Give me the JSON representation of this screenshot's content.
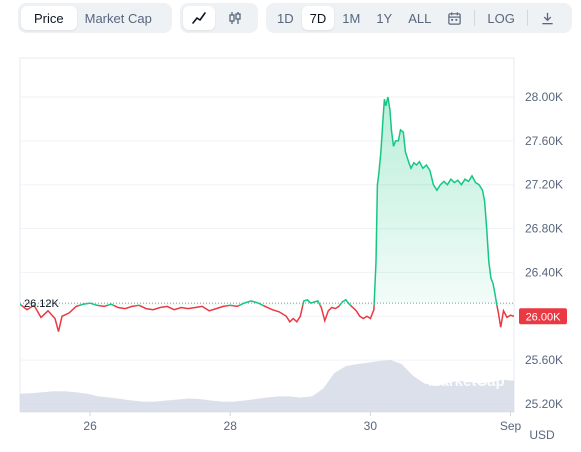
{
  "toolbar": {
    "type_tabs": [
      {
        "label": "Price",
        "active": true
      },
      {
        "label": "Market Cap",
        "active": false
      }
    ],
    "view_modes": [
      {
        "icon": "line-chart-icon",
        "active": true
      },
      {
        "icon": "candlestick-icon",
        "active": false
      }
    ],
    "ranges": [
      "1D",
      "7D",
      "1M",
      "1Y",
      "ALL"
    ],
    "active_range": "7D",
    "log_label": "LOG"
  },
  "chart_data": {
    "type": "area",
    "currency_label": "USD",
    "y_ticks": [
      "28.00K",
      "27.60K",
      "27.20K",
      "26.80K",
      "26.40K",
      "26.00K",
      "25.60K",
      "25.20K"
    ],
    "x_ticks": [
      "26",
      "28",
      "30",
      "Sep"
    ],
    "ylim": [
      25200,
      28000
    ],
    "baseline": {
      "value": 26120,
      "label": "26.12K"
    },
    "current_price": {
      "value": 26000,
      "label": "26.00K"
    },
    "watermark": "MarketCap",
    "colors": {
      "above": "#16c784",
      "below": "#ea3943",
      "volume": "#cfd6e4"
    },
    "series": [
      {
        "t": 0.0,
        "v": 26110
      },
      {
        "t": 0.1,
        "v": 26060
      },
      {
        "t": 0.2,
        "v": 26100
      },
      {
        "t": 0.3,
        "v": 25990
      },
      {
        "t": 0.4,
        "v": 26050
      },
      {
        "t": 0.5,
        "v": 25980
      },
      {
        "t": 0.55,
        "v": 25860
      },
      {
        "t": 0.6,
        "v": 26000
      },
      {
        "t": 0.7,
        "v": 26030
      },
      {
        "t": 0.8,
        "v": 26090
      },
      {
        "t": 0.9,
        "v": 26110
      },
      {
        "t": 1.0,
        "v": 26120
      },
      {
        "t": 1.1,
        "v": 26100
      },
      {
        "t": 1.2,
        "v": 26090
      },
      {
        "t": 1.3,
        "v": 26110
      },
      {
        "t": 1.4,
        "v": 26080
      },
      {
        "t": 1.5,
        "v": 26070
      },
      {
        "t": 1.6,
        "v": 26090
      },
      {
        "t": 1.7,
        "v": 26100
      },
      {
        "t": 1.8,
        "v": 26070
      },
      {
        "t": 1.9,
        "v": 26060
      },
      {
        "t": 2.0,
        "v": 26080
      },
      {
        "t": 2.1,
        "v": 26090
      },
      {
        "t": 2.2,
        "v": 26060
      },
      {
        "t": 2.3,
        "v": 26080
      },
      {
        "t": 2.4,
        "v": 26070
      },
      {
        "t": 2.5,
        "v": 26080
      },
      {
        "t": 2.6,
        "v": 26090
      },
      {
        "t": 2.7,
        "v": 26050
      },
      {
        "t": 2.8,
        "v": 26070
      },
      {
        "t": 2.9,
        "v": 26090
      },
      {
        "t": 3.0,
        "v": 26100
      },
      {
        "t": 3.1,
        "v": 26090
      },
      {
        "t": 3.2,
        "v": 26120
      },
      {
        "t": 3.3,
        "v": 26140
      },
      {
        "t": 3.35,
        "v": 26130
      },
      {
        "t": 3.4,
        "v": 26120
      },
      {
        "t": 3.5,
        "v": 26090
      },
      {
        "t": 3.6,
        "v": 26060
      },
      {
        "t": 3.7,
        "v": 26040
      },
      {
        "t": 3.8,
        "v": 26000
      },
      {
        "t": 3.85,
        "v": 25950
      },
      {
        "t": 3.9,
        "v": 25980
      },
      {
        "t": 3.95,
        "v": 25950
      },
      {
        "t": 4.0,
        "v": 26000
      },
      {
        "t": 4.05,
        "v": 26140
      },
      {
        "t": 4.1,
        "v": 26150
      },
      {
        "t": 4.15,
        "v": 26120
      },
      {
        "t": 4.2,
        "v": 26130
      },
      {
        "t": 4.25,
        "v": 26140
      },
      {
        "t": 4.3,
        "v": 26080
      },
      {
        "t": 4.35,
        "v": 25960
      },
      {
        "t": 4.4,
        "v": 26050
      },
      {
        "t": 4.45,
        "v": 26080
      },
      {
        "t": 4.5,
        "v": 26070
      },
      {
        "t": 4.55,
        "v": 26090
      },
      {
        "t": 4.6,
        "v": 26130
      },
      {
        "t": 4.65,
        "v": 26150
      },
      {
        "t": 4.7,
        "v": 26110
      },
      {
        "t": 4.8,
        "v": 26050
      },
      {
        "t": 4.85,
        "v": 26000
      },
      {
        "t": 4.9,
        "v": 25980
      },
      {
        "t": 4.95,
        "v": 26000
      },
      {
        "t": 5.0,
        "v": 25980
      },
      {
        "t": 5.05,
        "v": 26060
      },
      {
        "t": 5.08,
        "v": 26500
      },
      {
        "t": 5.1,
        "v": 27200
      },
      {
        "t": 5.12,
        "v": 27300
      },
      {
        "t": 5.15,
        "v": 27500
      },
      {
        "t": 5.18,
        "v": 27800
      },
      {
        "t": 5.2,
        "v": 27980
      },
      {
        "t": 5.22,
        "v": 27920
      },
      {
        "t": 5.25,
        "v": 28000
      },
      {
        "t": 5.28,
        "v": 27880
      },
      {
        "t": 5.3,
        "v": 27700
      },
      {
        "t": 5.33,
        "v": 27550
      },
      {
        "t": 5.36,
        "v": 27600
      },
      {
        "t": 5.4,
        "v": 27600
      },
      {
        "t": 5.43,
        "v": 27700
      },
      {
        "t": 5.47,
        "v": 27680
      },
      {
        "t": 5.5,
        "v": 27500
      },
      {
        "t": 5.55,
        "v": 27400
      },
      {
        "t": 5.58,
        "v": 27350
      },
      {
        "t": 5.62,
        "v": 27400
      },
      {
        "t": 5.66,
        "v": 27380
      },
      {
        "t": 5.7,
        "v": 27410
      },
      {
        "t": 5.75,
        "v": 27350
      },
      {
        "t": 5.8,
        "v": 27380
      },
      {
        "t": 5.85,
        "v": 27330
      },
      {
        "t": 5.9,
        "v": 27200
      },
      {
        "t": 5.95,
        "v": 27150
      },
      {
        "t": 6.0,
        "v": 27200
      },
      {
        "t": 6.05,
        "v": 27230
      },
      {
        "t": 6.1,
        "v": 27200
      },
      {
        "t": 6.15,
        "v": 27250
      },
      {
        "t": 6.2,
        "v": 27220
      },
      {
        "t": 6.25,
        "v": 27240
      },
      {
        "t": 6.3,
        "v": 27200
      },
      {
        "t": 6.35,
        "v": 27250
      },
      {
        "t": 6.4,
        "v": 27230
      },
      {
        "t": 6.45,
        "v": 27280
      },
      {
        "t": 6.5,
        "v": 27220
      },
      {
        "t": 6.55,
        "v": 27200
      },
      {
        "t": 6.6,
        "v": 27150
      },
      {
        "t": 6.63,
        "v": 27050
      },
      {
        "t": 6.66,
        "v": 26800
      },
      {
        "t": 6.69,
        "v": 26500
      },
      {
        "t": 6.72,
        "v": 26350
      },
      {
        "t": 6.75,
        "v": 26300
      },
      {
        "t": 6.78,
        "v": 26200
      },
      {
        "t": 6.8,
        "v": 26120
      },
      {
        "t": 6.83,
        "v": 26020
      },
      {
        "t": 6.86,
        "v": 25900
      },
      {
        "t": 6.9,
        "v": 26050
      },
      {
        "t": 6.95,
        "v": 25990
      },
      {
        "t": 7.0,
        "v": 26010
      },
      {
        "t": 7.05,
        "v": 26000
      }
    ],
    "x_tick_positions": {
      "26": 1,
      "28": 3,
      "30": 5,
      "Sep": 7
    },
    "t_range": [
      0.0,
      7.05
    ],
    "volume": [
      0.35,
      0.36,
      0.38,
      0.4,
      0.4,
      0.38,
      0.35,
      0.3,
      0.28,
      0.25,
      0.22,
      0.2,
      0.2,
      0.22,
      0.24,
      0.26,
      0.25,
      0.22,
      0.2,
      0.2,
      0.22,
      0.25,
      0.28,
      0.3,
      0.3,
      0.28,
      0.3,
      0.45,
      0.75,
      0.88,
      0.92,
      0.95,
      0.98,
      1.0,
      0.92,
      0.7,
      0.55,
      0.5,
      0.55,
      0.6,
      0.58,
      0.55,
      0.58,
      0.62,
      0.6
    ]
  }
}
